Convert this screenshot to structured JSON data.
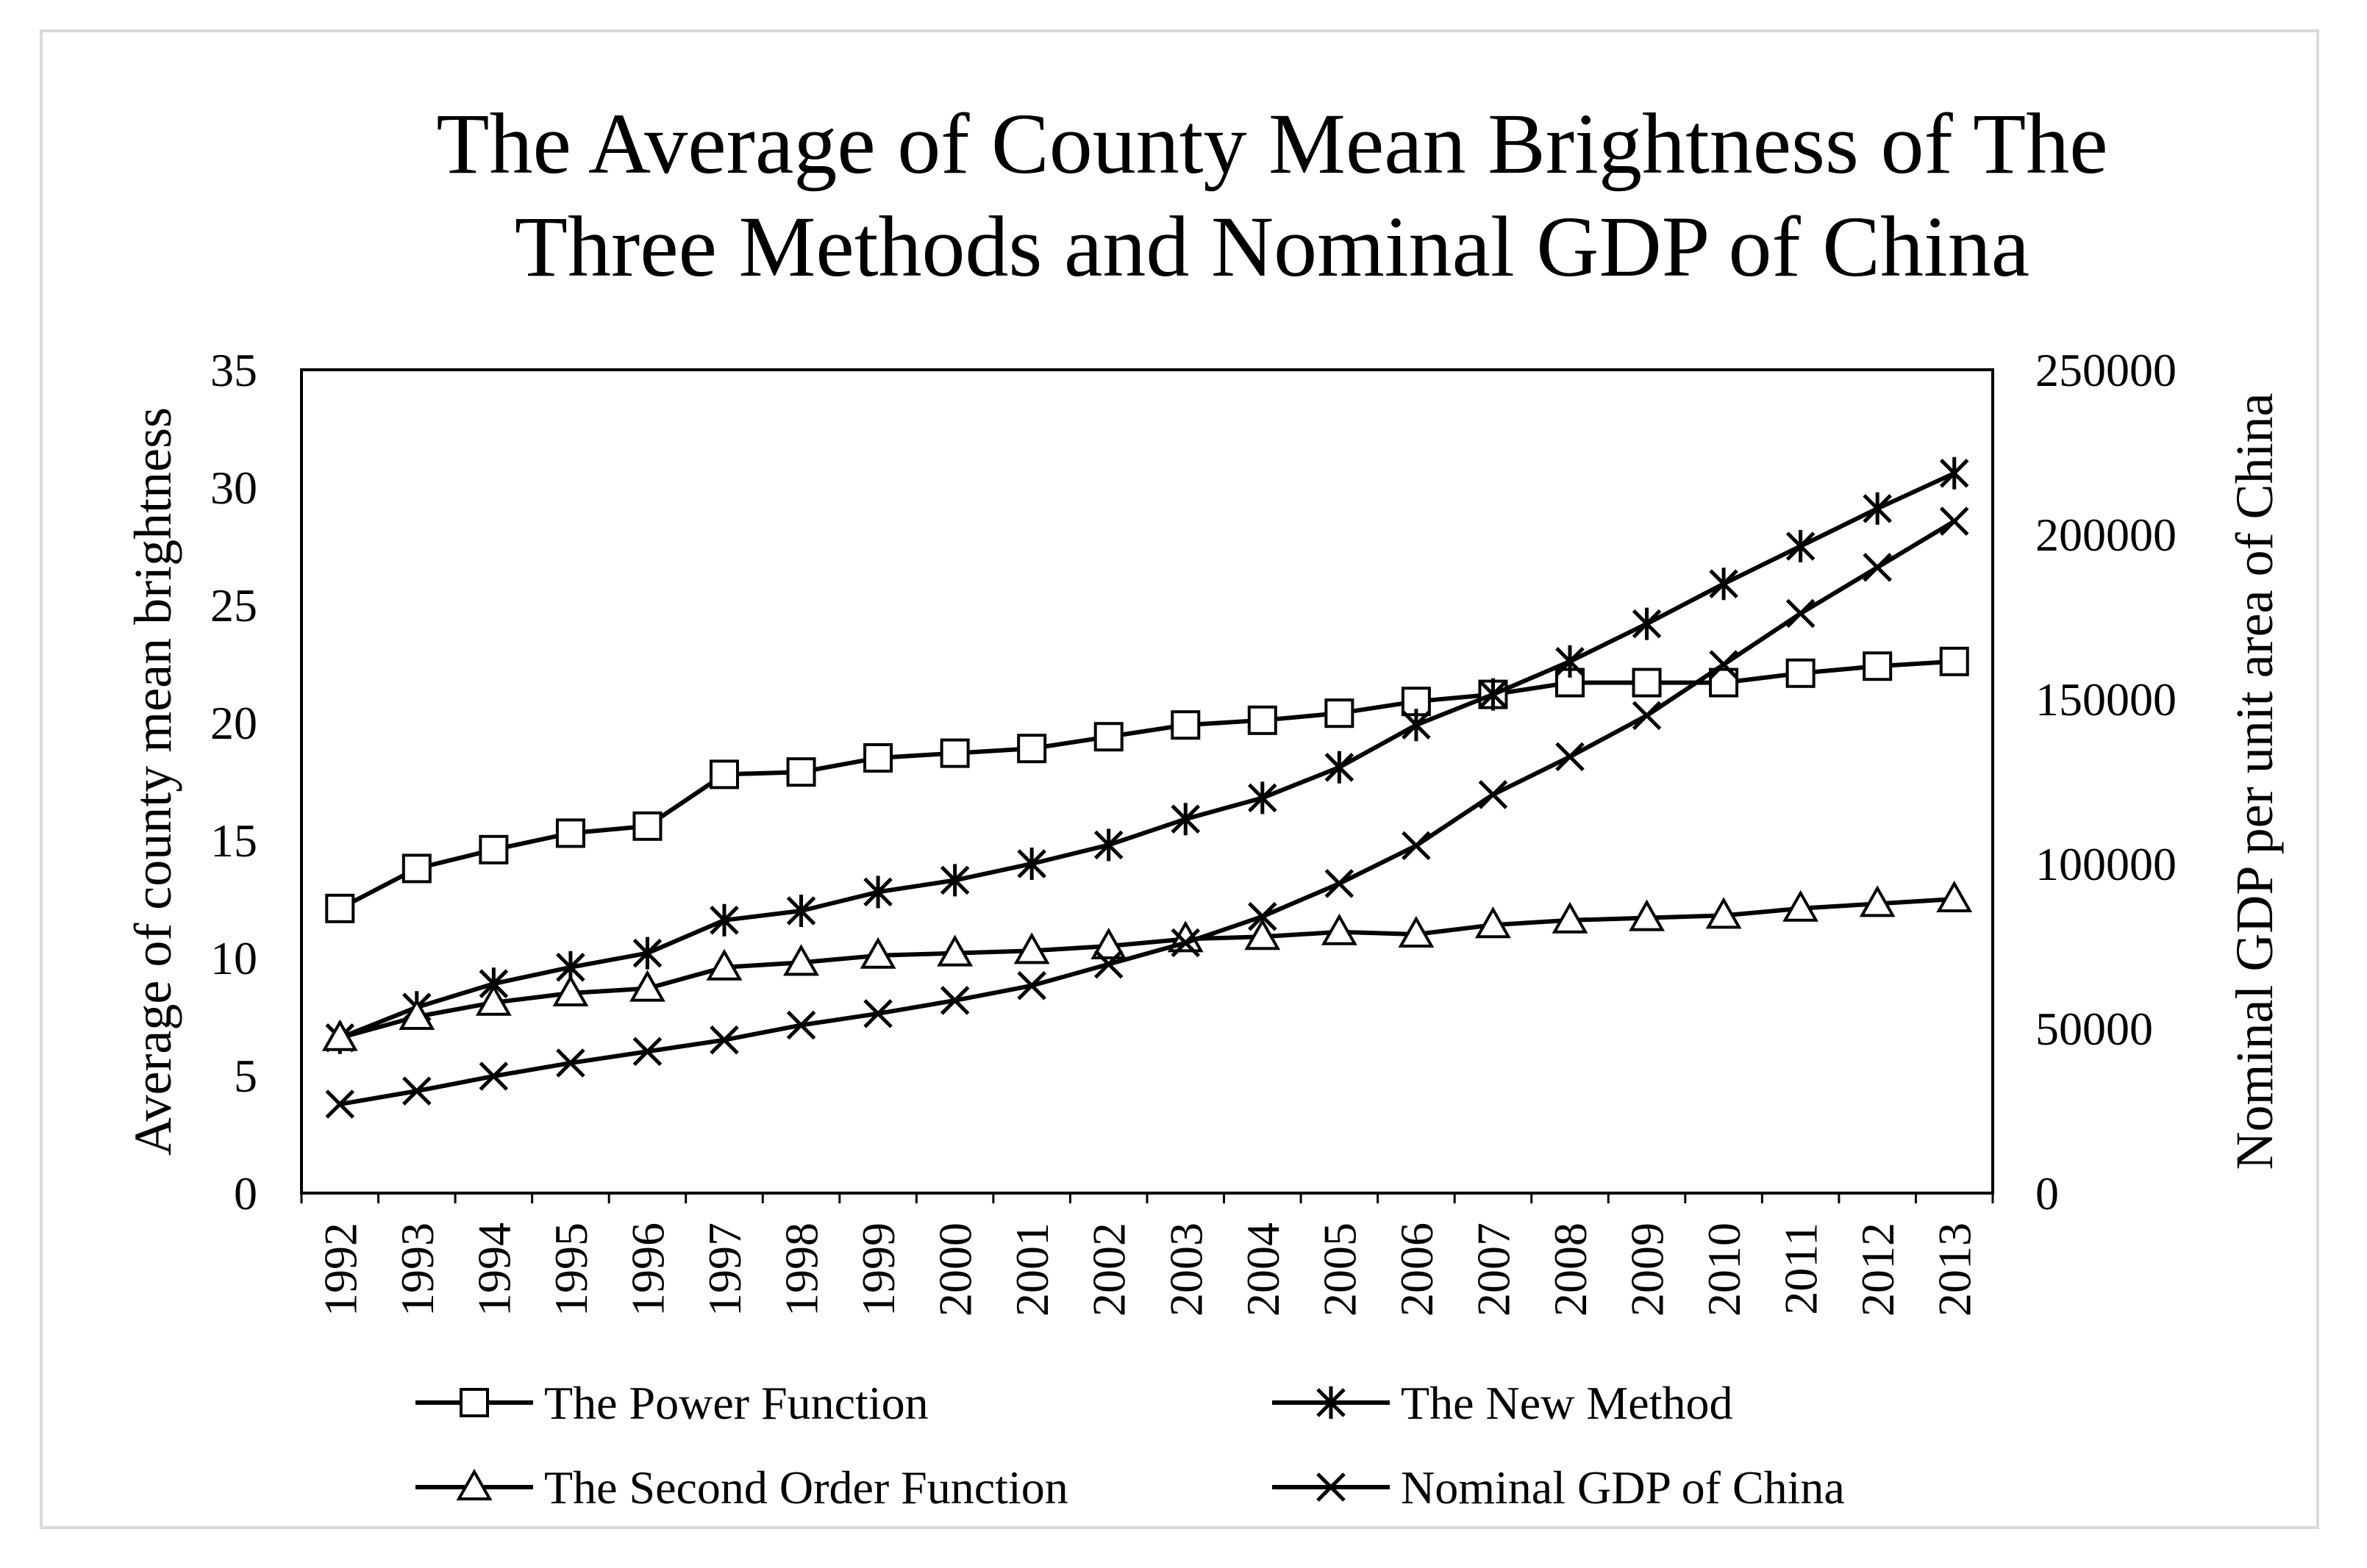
{
  "chart_data": {
    "type": "line",
    "title": [
      "The Average of County Mean Brightness of The",
      "Three Methods and Nominal GDP of China"
    ],
    "xlabel": "",
    "ylabel_left": "Average of county mean brightness",
    "ylabel_right": "Nominal GDP per unit area of China",
    "ylim_left": [
      0,
      35
    ],
    "ylim_right": [
      0,
      250000
    ],
    "yticks_left": [
      "0",
      "5",
      "10",
      "15",
      "20",
      "25",
      "30",
      "35"
    ],
    "yticks_right": [
      "0",
      "50000",
      "100000",
      "150000",
      "200000",
      "250000"
    ],
    "categories": [
      "1992",
      "1993",
      "1994",
      "1995",
      "1996",
      "1997",
      "1998",
      "1999",
      "2000",
      "2001",
      "2002",
      "2003",
      "2004",
      "2005",
      "2006",
      "2007",
      "2008",
      "2009",
      "2010",
      "2011",
      "2012",
      "2013"
    ],
    "series": [
      {
        "name": "The Power Function",
        "axis": "left",
        "marker": "square",
        "values": [
          12.1,
          13.8,
          14.6,
          15.3,
          15.6,
          17.8,
          17.9,
          18.5,
          18.7,
          18.9,
          19.4,
          19.9,
          20.1,
          20.4,
          20.9,
          21.2,
          21.7,
          21.7,
          21.7,
          22.1,
          22.4,
          22.6
        ]
      },
      {
        "name": "The New Method",
        "axis": "left",
        "marker": "asterisk",
        "values": [
          6.6,
          7.9,
          8.9,
          9.6,
          10.2,
          11.6,
          12.0,
          12.8,
          13.3,
          14.0,
          14.8,
          15.9,
          16.8,
          18.1,
          19.9,
          21.2,
          22.6,
          24.2,
          25.9,
          27.5,
          29.1,
          30.6
        ]
      },
      {
        "name": "The Second Order Function",
        "axis": "left",
        "marker": "triangle",
        "values": [
          6.6,
          7.5,
          8.1,
          8.5,
          8.7,
          9.6,
          9.8,
          10.1,
          10.2,
          10.3,
          10.5,
          10.8,
          10.9,
          11.1,
          11.0,
          11.4,
          11.6,
          11.7,
          11.8,
          12.1,
          12.3,
          12.5
        ]
      },
      {
        "name": "Nominal GDP of China",
        "axis": "right",
        "marker": "x",
        "values": [
          27000,
          31000,
          35500,
          39500,
          43000,
          46500,
          51000,
          54500,
          58500,
          63000,
          69500,
          76000,
          84000,
          94000,
          105500,
          121000,
          132500,
          145000,
          160500,
          176000,
          190000,
          204000
        ]
      }
    ],
    "legend_position": "bottom"
  }
}
